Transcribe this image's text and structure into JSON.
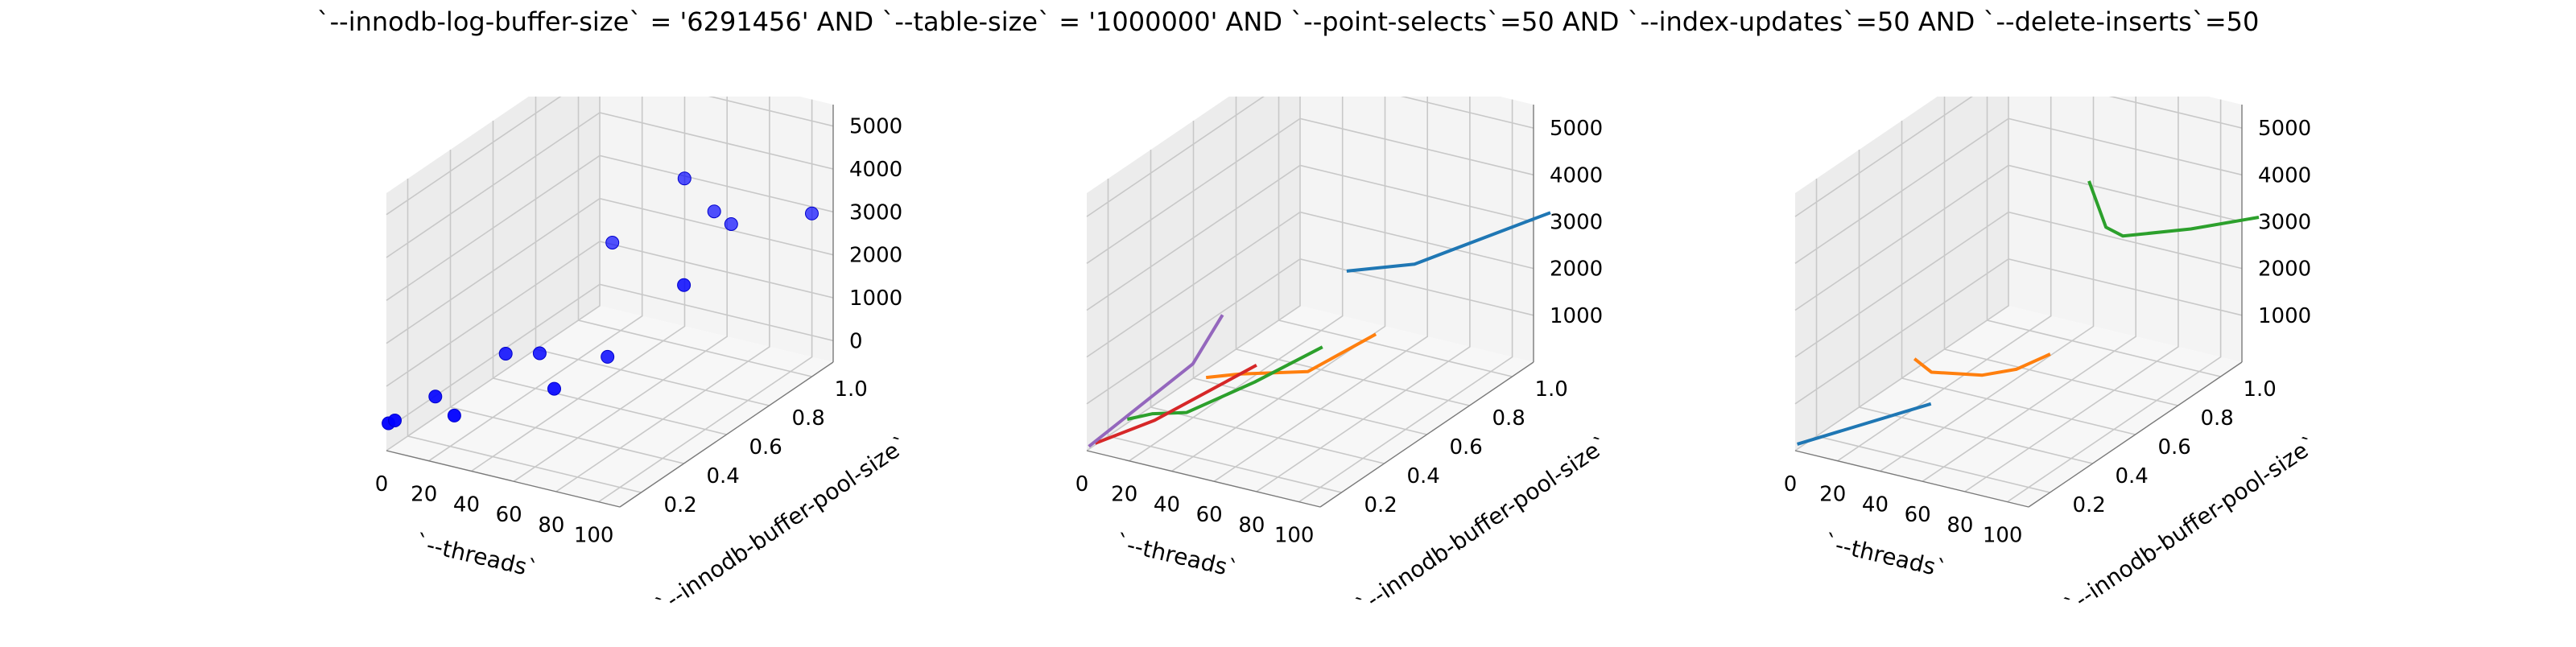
{
  "title": "`--innodb-log-buffer-size` = '6291456' AND `--table-size` = '1000000'  AND `--point-selects`=50 AND `--index-updates`=50 AND `--delete-inserts`=50",
  "chart_data": [
    {
      "type": "scatter",
      "xlabel": "`--threads`",
      "ylabel": "`--innodb-buffer-pool-size`",
      "zlabel": "",
      "xticks": [
        "0",
        "20",
        "40",
        "60",
        "80",
        "100"
      ],
      "yticks": [
        "0.2",
        "0.4",
        "0.6",
        "0.8",
        "1.0"
      ],
      "zticks": [
        "0",
        "1000",
        "2000",
        "3000",
        "4000",
        "5000"
      ],
      "xlim": [
        0,
        110
      ],
      "ylim": [
        0.1,
        1.1
      ],
      "zlim": [
        -500,
        5500
      ],
      "grid": true,
      "series": [
        {
          "color": "#0000ff",
          "points": [
            {
              "x": 1,
              "y": 0.1,
              "z": 150
            },
            {
              "x": 4,
              "y": 0.1,
              "z": 250
            },
            {
              "x": 8,
              "y": 0.25,
              "z": 350
            },
            {
              "x": 16,
              "y": 0.5,
              "z": 600
            },
            {
              "x": 32,
              "y": 0.5,
              "z": 800
            },
            {
              "x": 32,
              "y": 0.1,
              "z": 700
            },
            {
              "x": 64,
              "y": 0.25,
              "z": 1200
            },
            {
              "x": 64,
              "y": 0.5,
              "z": 1100
            },
            {
              "x": 16,
              "y": 1.0,
              "z": 1500
            },
            {
              "x": 50,
              "y": 1.0,
              "z": 3400
            },
            {
              "x": 64,
              "y": 1.0,
              "z": 2800
            },
            {
              "x": 72,
              "y": 1.0,
              "z": 2600
            },
            {
              "x": 100,
              "y": 0.5,
              "z": 3200
            },
            {
              "x": 110,
              "y": 1.0,
              "z": 3300
            }
          ]
        }
      ]
    },
    {
      "type": "line",
      "xlabel": "`--threads`",
      "ylabel": "`--innodb-buffer-pool-size`",
      "zlabel": "",
      "xticks": [
        "0",
        "20",
        "40",
        "60",
        "80",
        "100"
      ],
      "yticks": [
        "0.2",
        "0.4",
        "0.6",
        "0.8",
        "1.0"
      ],
      "zticks": [
        "1000",
        "2000",
        "3000",
        "4000",
        "5000"
      ],
      "xlim": [
        0,
        110
      ],
      "ylim": [
        0.1,
        1.1
      ],
      "zlim": [
        0,
        5500
      ],
      "grid": true,
      "series": [
        {
          "color": "#1f77b4",
          "points": [
            {
              "x": 32,
              "y": 1.0,
              "z": 1400
            },
            {
              "x": 64,
              "y": 1.0,
              "z": 1900
            },
            {
              "x": 128,
              "y": 1.0,
              "z": 3700
            }
          ]
        },
        {
          "color": "#ff7f0e",
          "points": [
            {
              "x": 16,
              "y": 0.5,
              "z": 500
            },
            {
              "x": 32,
              "y": 0.5,
              "z": 750
            },
            {
              "x": 64,
              "y": 0.5,
              "z": 1150
            },
            {
              "x": 96,
              "y": 0.5,
              "z": 2300
            }
          ]
        },
        {
          "color": "#2ca02c",
          "points": [
            {
              "x": 4,
              "y": 0.25,
              "z": 250
            },
            {
              "x": 16,
              "y": 0.25,
              "z": 500
            },
            {
              "x": 32,
              "y": 0.25,
              "z": 700
            },
            {
              "x": 64,
              "y": 0.25,
              "z": 1700
            },
            {
              "x": 96,
              "y": 0.25,
              "z": 2800
            }
          ]
        },
        {
          "color": "#d62728",
          "points": [
            {
              "x": 4,
              "y": 0.1,
              "z": 200
            },
            {
              "x": 32,
              "y": 0.1,
              "z": 1000
            },
            {
              "x": 80,
              "y": 0.1,
              "z": 2700
            }
          ]
        },
        {
          "color": "#9467bd",
          "points": [
            {
              "x": 1,
              "y": 0.1,
              "z": 100
            },
            {
              "x": 50,
              "y": 0.1,
              "z": 2400
            },
            {
              "x": 64,
              "y": 0.1,
              "z": 3600
            }
          ]
        }
      ]
    },
    {
      "type": "line",
      "xlabel": "`--threads`",
      "ylabel": "`--innodb-buffer-pool-size`",
      "zlabel": "",
      "xticks": [
        "0",
        "20",
        "40",
        "60",
        "80",
        "100"
      ],
      "yticks": [
        "0.2",
        "0.4",
        "0.6",
        "0.8",
        "1.0"
      ],
      "zticks": [
        "1000",
        "2000",
        "3000",
        "4000",
        "5000"
      ],
      "xlim": [
        0,
        110
      ],
      "ylim": [
        0.1,
        1.1
      ],
      "zlim": [
        0,
        5500
      ],
      "grid": true,
      "series": [
        {
          "color": "#1f77b4",
          "points": [
            {
              "x": 1,
              "y": 0.1,
              "z": 150
            },
            {
              "x": 64,
              "y": 0.1,
              "z": 1700
            }
          ]
        },
        {
          "color": "#ff7f0e",
          "points": [
            {
              "x": 16,
              "y": 0.5,
              "z": 900
            },
            {
              "x": 24,
              "y": 0.5,
              "z": 700
            },
            {
              "x": 48,
              "y": 0.5,
              "z": 900
            },
            {
              "x": 64,
              "y": 0.5,
              "z": 1200
            },
            {
              "x": 80,
              "y": 0.5,
              "z": 1700
            }
          ]
        },
        {
          "color": "#2ca02c",
          "points": [
            {
              "x": 48,
              "y": 1.0,
              "z": 3500
            },
            {
              "x": 56,
              "y": 1.0,
              "z": 2600
            },
            {
              "x": 64,
              "y": 1.0,
              "z": 2500
            },
            {
              "x": 96,
              "y": 1.0,
              "z": 3000
            },
            {
              "x": 128,
              "y": 1.0,
              "z": 3600
            }
          ]
        }
      ]
    }
  ]
}
